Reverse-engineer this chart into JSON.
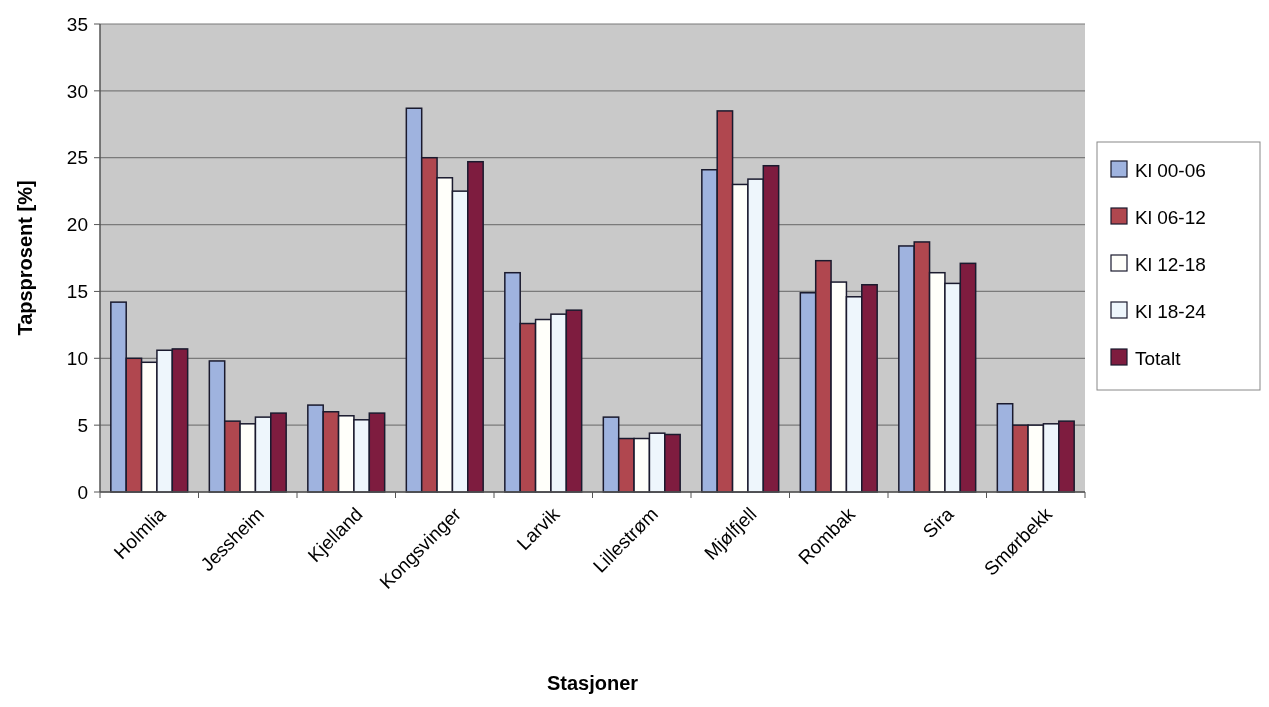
{
  "chart_data": {
    "type": "bar",
    "xlabel": "Stasjoner",
    "ylabel": "Tapsprosent [%]",
    "categories": [
      "Holmlia",
      "Jessheim",
      "Kjelland",
      "Kongsvinger",
      "Larvik",
      "Lillestrøm",
      "Mjølfjell",
      "Rombak",
      "Sira",
      "Smørbekk"
    ],
    "series": [
      {
        "name": "Kl 00-06",
        "color": "#9fb3df",
        "values": [
          14.2,
          9.8,
          6.5,
          28.7,
          16.4,
          5.6,
          24.1,
          14.9,
          18.4,
          6.6
        ]
      },
      {
        "name": "Kl 06-12",
        "color": "#b0474f",
        "values": [
          10.0,
          5.3,
          6.0,
          25.0,
          12.6,
          4.0,
          28.5,
          17.3,
          18.7,
          5.0
        ]
      },
      {
        "name": "Kl 12-18",
        "color": "#fffffa",
        "values": [
          9.7,
          5.1,
          5.7,
          23.5,
          12.9,
          4.0,
          23.0,
          15.7,
          16.4,
          5.0
        ]
      },
      {
        "name": "Kl 18-24",
        "color": "#eef6fc",
        "values": [
          10.6,
          5.6,
          5.4,
          22.5,
          13.3,
          4.4,
          23.4,
          14.6,
          15.6,
          5.1
        ]
      },
      {
        "name": "Totalt",
        "color": "#7e1c3f",
        "values": [
          10.7,
          5.9,
          5.9,
          24.7,
          13.6,
          4.3,
          24.4,
          15.5,
          17.1,
          5.3
        ]
      }
    ],
    "ylim": [
      0,
      35
    ],
    "yticks": [
      0,
      5,
      10,
      15,
      20,
      25,
      30,
      35
    ],
    "grid": "y",
    "legend": "right"
  }
}
